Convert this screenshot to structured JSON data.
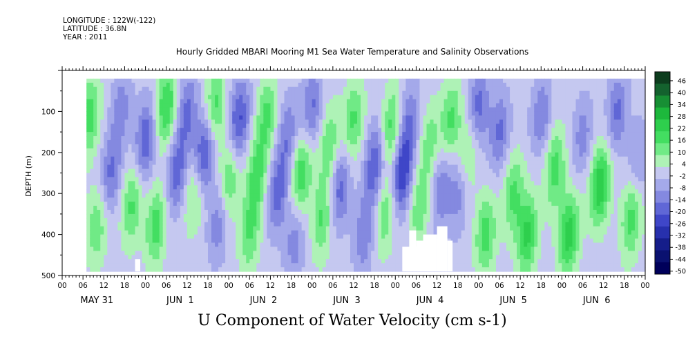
{
  "header": {
    "longitude": "LONGITUDE : 122W(-122)",
    "latitude": "LATITUDE : 36.8N",
    "year": "YEAR : 2011"
  },
  "title": "Hourly Gridded MBARI Mooring M1 Sea Water Temperature and Salinity Observations",
  "footer": "U Component of Water Velocity (cm s-1)",
  "chart_data": {
    "type": "heatmap",
    "title": "Hourly Gridded MBARI Mooring M1 Sea Water Temperature and Salinity Observations",
    "variable": "U Component of Water Velocity (cm s-1)",
    "ylabel": "DEPTH (m)",
    "ylim": [
      500,
      0
    ],
    "y_axis_inverted": true,
    "y_ticks": [
      100,
      200,
      300,
      400,
      500
    ],
    "x_range_hours": [
      0,
      168
    ],
    "x_hour_ticks": [
      "00",
      "06",
      "12",
      "18",
      "00",
      "06",
      "12",
      "18",
      "00",
      "06",
      "12",
      "18",
      "00",
      "06",
      "12",
      "18",
      "00",
      "06",
      "12",
      "18",
      "00",
      "06",
      "12",
      "18",
      "00",
      "06",
      "12",
      "18",
      "00"
    ],
    "x_day_labels": [
      "MAY 31",
      "JUN  1",
      "JUN  2",
      "JUN  3",
      "JUN  4",
      "JUN  5",
      "JUN  6"
    ],
    "data_start_hour": 7,
    "data_end_hour": 168,
    "depth_range_m": [
      20,
      490
    ],
    "colorbar": {
      "labels": [
        "46",
        "40",
        "34",
        "28",
        "22",
        "16",
        "10",
        "4",
        "-2",
        "-8",
        "-14",
        "-20",
        "-26",
        "-32",
        "-38",
        "-44",
        "-50"
      ],
      "min": -50,
      "max": 50,
      "colors": [
        "#0d3d1e",
        "#14622e",
        "#178f34",
        "#1db83c",
        "#2ecf4d",
        "#43de61",
        "#70ea86",
        "#aef2b6",
        "#c5c8f0",
        "#a4a9ea",
        "#8489e0",
        "#6067d6",
        "#3f46c8",
        "#2730ad",
        "#151d8a",
        "#0a1170",
        "#00005a"
      ]
    },
    "gaps": [
      {
        "hour_start": 21,
        "hour_end": 22.5,
        "depth_top": 460,
        "depth_bottom": 490
      },
      {
        "hour_start": 98,
        "hour_end": 107,
        "depth_top": 430,
        "depth_bottom": 490
      },
      {
        "hour_start": 100,
        "hour_end": 102,
        "depth_top": 390,
        "depth_bottom": 490
      },
      {
        "hour_start": 102,
        "hour_end": 104,
        "depth_top": 415,
        "depth_bottom": 490
      },
      {
        "hour_start": 104,
        "hour_end": 108,
        "depth_top": 400,
        "depth_bottom": 490
      },
      {
        "hour_start": 108,
        "hour_end": 111,
        "depth_top": 380,
        "depth_bottom": 490
      },
      {
        "hour_start": 111,
        "hour_end": 112.5,
        "depth_top": 415,
        "depth_bottom": 490
      }
    ],
    "features": [
      {
        "hour": 8,
        "depth": 110,
        "u": 18
      },
      {
        "hour": 10,
        "depth": 380,
        "u": 14
      },
      {
        "hour": 14,
        "depth": 250,
        "u": -16
      },
      {
        "hour": 17,
        "depth": 90,
        "u": -12
      },
      {
        "hour": 20,
        "depth": 330,
        "u": 16
      },
      {
        "hour": 24,
        "depth": 170,
        "u": -20
      },
      {
        "hour": 27,
        "depth": 380,
        "u": 18
      },
      {
        "hour": 30,
        "depth": 90,
        "u": 22
      },
      {
        "hour": 33,
        "depth": 250,
        "u": -18
      },
      {
        "hour": 36,
        "depth": 100,
        "u": -16
      },
      {
        "hour": 38,
        "depth": 300,
        "u": 12
      },
      {
        "hour": 41,
        "depth": 200,
        "u": -24
      },
      {
        "hour": 44,
        "depth": 90,
        "u": 18
      },
      {
        "hour": 45,
        "depth": 370,
        "u": -14
      },
      {
        "hour": 48,
        "depth": 270,
        "u": 16
      },
      {
        "hour": 51,
        "depth": 120,
        "u": -22
      },
      {
        "hour": 54,
        "depth": 400,
        "u": 14
      },
      {
        "hour": 56,
        "depth": 260,
        "u": 18
      },
      {
        "hour": 59,
        "depth": 110,
        "u": 16
      },
      {
        "hour": 62,
        "depth": 300,
        "u": -18
      },
      {
        "hour": 65,
        "depth": 160,
        "u": -14
      },
      {
        "hour": 67,
        "depth": 420,
        "u": -12
      },
      {
        "hour": 69,
        "depth": 250,
        "u": 20
      },
      {
        "hour": 72,
        "depth": 90,
        "u": -16
      },
      {
        "hour": 75,
        "depth": 360,
        "u": 16
      },
      {
        "hour": 77,
        "depth": 180,
        "u": 14
      },
      {
        "hour": 80,
        "depth": 290,
        "u": -18
      },
      {
        "hour": 84,
        "depth": 120,
        "u": 16
      },
      {
        "hour": 87,
        "depth": 400,
        "u": -14
      },
      {
        "hour": 90,
        "depth": 230,
        "u": -20
      },
      {
        "hour": 93,
        "depth": 350,
        "u": 14
      },
      {
        "hour": 95,
        "depth": 140,
        "u": 18
      },
      {
        "hour": 98,
        "depth": 250,
        "u": -26
      },
      {
        "hour": 100,
        "depth": 120,
        "u": -14
      },
      {
        "hour": 103,
        "depth": 330,
        "u": 14
      },
      {
        "hour": 106,
        "depth": 180,
        "u": 12
      },
      {
        "hour": 109,
        "depth": 290,
        "u": -14
      },
      {
        "hour": 112,
        "depth": 120,
        "u": 16
      },
      {
        "hour": 114,
        "depth": 300,
        "u": -12
      },
      {
        "hour": 117,
        "depth": 200,
        "u": 12
      },
      {
        "hour": 120,
        "depth": 90,
        "u": -18
      },
      {
        "hour": 122,
        "depth": 400,
        "u": 18
      },
      {
        "hour": 126,
        "depth": 150,
        "u": -16
      },
      {
        "hour": 130,
        "depth": 300,
        "u": 16
      },
      {
        "hour": 134,
        "depth": 400,
        "u": 22
      },
      {
        "hour": 138,
        "depth": 110,
        "u": -14
      },
      {
        "hour": 142,
        "depth": 240,
        "u": 18
      },
      {
        "hour": 146,
        "depth": 400,
        "u": 24
      },
      {
        "hour": 150,
        "depth": 160,
        "u": -12
      },
      {
        "hour": 155,
        "depth": 280,
        "u": 26
      },
      {
        "hour": 160,
        "depth": 100,
        "u": -16
      },
      {
        "hour": 164,
        "depth": 360,
        "u": 18
      },
      {
        "hour": 166,
        "depth": 220,
        "u": -10
      }
    ]
  }
}
